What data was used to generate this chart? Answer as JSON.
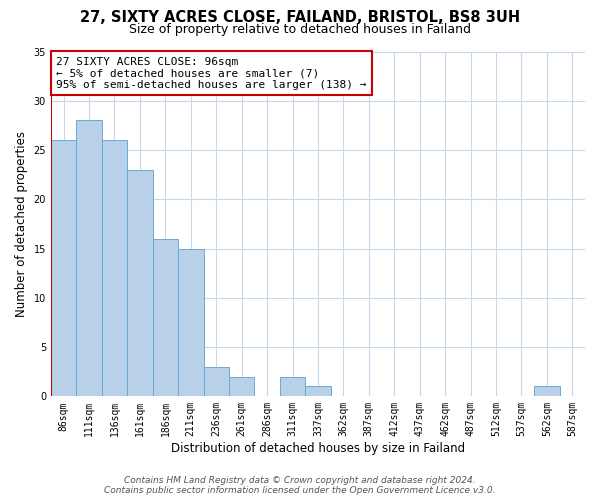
{
  "title": "27, SIXTY ACRES CLOSE, FAILAND, BRISTOL, BS8 3UH",
  "subtitle": "Size of property relative to detached houses in Failand",
  "xlabel": "Distribution of detached houses by size in Failand",
  "ylabel": "Number of detached properties",
  "bin_labels": [
    "86sqm",
    "111sqm",
    "136sqm",
    "161sqm",
    "186sqm",
    "211sqm",
    "236sqm",
    "261sqm",
    "286sqm",
    "311sqm",
    "337sqm",
    "362sqm",
    "387sqm",
    "412sqm",
    "437sqm",
    "462sqm",
    "487sqm",
    "512sqm",
    "537sqm",
    "562sqm",
    "587sqm"
  ],
  "bin_values": [
    26,
    28,
    26,
    23,
    16,
    15,
    3,
    2,
    0,
    2,
    1,
    0,
    0,
    0,
    0,
    0,
    0,
    0,
    0,
    1,
    0
  ],
  "bar_color": "#b8d0e8",
  "bar_edge_color": "#6aaad4",
  "annotation_text": "27 SIXTY ACRES CLOSE: 96sqm\n← 5% of detached houses are smaller (7)\n95% of semi-detached houses are larger (138) →",
  "annotation_box_color": "#ffffff",
  "annotation_box_edge_color": "#cc0000",
  "red_line_x": -0.5,
  "ylim": [
    0,
    35
  ],
  "yticks": [
    0,
    5,
    10,
    15,
    20,
    25,
    30,
    35
  ],
  "footer_line1": "Contains HM Land Registry data © Crown copyright and database right 2024.",
  "footer_line2": "Contains public sector information licensed under the Open Government Licence v3.0.",
  "bg_color": "#ffffff",
  "grid_color": "#c8d8e8",
  "red_line_color": "#cc0000",
  "title_fontsize": 10.5,
  "subtitle_fontsize": 9,
  "axis_label_fontsize": 8.5,
  "tick_fontsize": 7,
  "annotation_fontsize": 8,
  "footer_fontsize": 6.5
}
